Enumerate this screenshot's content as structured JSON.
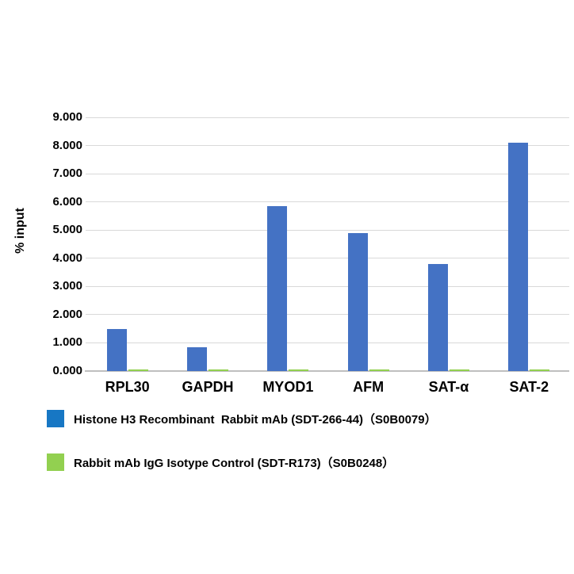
{
  "chart_data": {
    "type": "bar",
    "title": "",
    "ylabel": "% input",
    "xlabel": "",
    "ylim": [
      0,
      9
    ],
    "grid": true,
    "legend_position": "bottom-left",
    "categories": [
      "RPL30",
      "GAPDH",
      "MYOD1",
      "AFM",
      "SAT-α",
      "SAT-2"
    ],
    "yticks": [
      "0.000",
      "1.000",
      "2.000",
      "3.000",
      "4.000",
      "5.000",
      "6.000",
      "7.000",
      "8.000",
      "9.000"
    ],
    "series": [
      {
        "name": "Histone H3 Recombinant  Rabbit mAb (SDT-266-44)（S0B0079）",
        "color": "#4472c4",
        "values": [
          1.5,
          0.85,
          5.85,
          4.9,
          3.8,
          8.1
        ]
      },
      {
        "name": "Rabbit mAb IgG Isotype Control (SDT-R173)（S0B0248）",
        "color": "#92d050",
        "values": [
          0.05,
          0.05,
          0.05,
          0.05,
          0.05,
          0.05
        ]
      }
    ]
  },
  "legend": {
    "items": [
      {
        "label": "Histone H3 Recombinant  Rabbit mAb (SDT-266-44)（S0B0079）",
        "swatch_color": "#1777c4"
      },
      {
        "label": "Rabbit mAb IgG Isotype Control (SDT-R173)（S0B0248）",
        "swatch_color": "#92d050"
      }
    ]
  },
  "colors": {
    "bar_blue": "#4472c4",
    "bar_green": "#92d050",
    "legend_blue": "#1777c4",
    "legend_green": "#92d050",
    "gridline": "#d9d9d9",
    "axis_line": "#bfbfbf",
    "background": "#ffffff"
  }
}
